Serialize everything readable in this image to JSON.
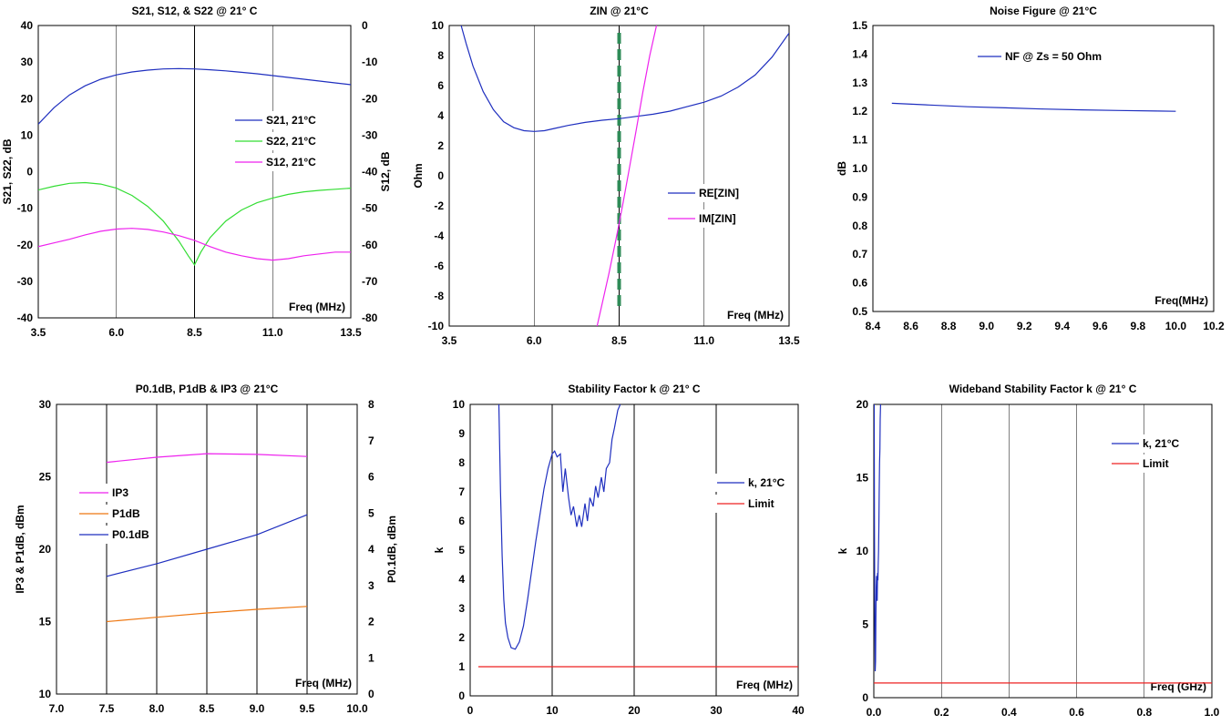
{
  "chart_data": [
    {
      "id": "s_params",
      "type": "line",
      "title": "S21, S12, & S22 @ 21° C",
      "xlabel": "",
      "xlabel_inside": "Freq (MHz)",
      "ylabel": "S21, S22, dB",
      "y2label": "S12, dB",
      "xlim": [
        3.5,
        13.5
      ],
      "xticks": [
        3.5,
        6.0,
        8.5,
        11.0,
        13.5
      ],
      "xtick_labels": [
        "3.5",
        "6.0",
        "8.5",
        "11.0",
        "13.5"
      ],
      "ylim": [
        -40,
        40
      ],
      "yticks": [
        -40,
        -30,
        -20,
        -10,
        0,
        10,
        20,
        30,
        40
      ],
      "ytick_labels": [
        "-40",
        "-30",
        "-20",
        "-10",
        "0",
        "10",
        "20",
        "30",
        "40"
      ],
      "y2lim": [
        -80,
        0
      ],
      "y2ticks": [
        -80,
        -70,
        -60,
        -50,
        -40,
        -30,
        -20,
        -10,
        0
      ],
      "y2tick_labels": [
        "-80",
        "-70",
        "-60",
        "-50",
        "-40",
        "-30",
        "-20",
        "-10",
        "0"
      ],
      "grid": "vertical",
      "legend": "right",
      "series": [
        {
          "name": "S21, 21°C",
          "color": "#1f2fbf",
          "axis": "left",
          "x": [
            3.5,
            4.0,
            4.5,
            5.0,
            5.5,
            6.0,
            6.5,
            7.0,
            7.5,
            8.0,
            8.5,
            9.0,
            9.5,
            10.0,
            10.5,
            11.0,
            11.5,
            12.0,
            12.5,
            13.0,
            13.5
          ],
          "y": [
            13,
            17.5,
            21,
            23.5,
            25.3,
            26.5,
            27.3,
            27.8,
            28.1,
            28.2,
            28.1,
            27.9,
            27.6,
            27.2,
            26.8,
            26.3,
            25.8,
            25.3,
            24.8,
            24.3,
            23.8
          ]
        },
        {
          "name": "S22, 21°C",
          "color": "#33dd33",
          "axis": "left",
          "x": [
            3.5,
            4.0,
            4.5,
            5.0,
            5.5,
            6.0,
            6.5,
            7.0,
            7.5,
            8.0,
            8.3,
            8.5,
            8.7,
            9.0,
            9.5,
            10.0,
            10.5,
            11.0,
            11.5,
            12.0,
            12.5,
            13.0,
            13.5
          ],
          "y": [
            -5,
            -4,
            -3.2,
            -3,
            -3.4,
            -4.5,
            -6.5,
            -9.5,
            -13.5,
            -19,
            -23,
            -25.5,
            -22,
            -18,
            -13.5,
            -10.5,
            -8.5,
            -7.2,
            -6.2,
            -5.5,
            -5.1,
            -4.8,
            -4.5
          ]
        },
        {
          "name": "S12, 21°C",
          "color": "#ee22ee",
          "axis": "right",
          "x": [
            3.5,
            4.0,
            4.5,
            5.0,
            5.5,
            6.0,
            6.5,
            7.0,
            7.5,
            8.0,
            8.5,
            9.0,
            9.5,
            10.0,
            10.5,
            11.0,
            11.5,
            12.0,
            12.5,
            13.0,
            13.5
          ],
          "y": [
            -60.5,
            -59.5,
            -58.5,
            -57.3,
            -56.3,
            -55.7,
            -55.5,
            -55.8,
            -56.5,
            -57.5,
            -58.8,
            -60.5,
            -62,
            -63,
            -63.8,
            -64.2,
            -63.8,
            -63,
            -62.5,
            -62,
            -62
          ]
        }
      ]
    },
    {
      "id": "zin",
      "type": "line",
      "title": "ZIN @ 21°C",
      "xlabel": "",
      "xlabel_inside": "Freq (MHz)",
      "ylabel": "Ohm",
      "xlim": [
        3.5,
        13.5
      ],
      "xticks": [
        3.5,
        6.0,
        8.5,
        11.0,
        13.5
      ],
      "xtick_labels": [
        "3.5",
        "6.0",
        "8.5",
        "11.0",
        "13.5"
      ],
      "ylim": [
        -10,
        10
      ],
      "yticks": [
        -10,
        -8,
        -6,
        -4,
        -2,
        0,
        2,
        4,
        6,
        8,
        10
      ],
      "ytick_labels": [
        "-10",
        "-8",
        "-6",
        "-4",
        "-2",
        "0",
        "2",
        "4",
        "6",
        "8",
        "10"
      ],
      "grid": "vertical",
      "legend": "right",
      "marker_x": 8.5,
      "marker_color": "#2e8b57",
      "series": [
        {
          "name": "RE[ZIN]",
          "color": "#1f2fbf",
          "x": [
            3.85,
            4.0,
            4.2,
            4.5,
            4.8,
            5.1,
            5.4,
            5.7,
            6.0,
            6.3,
            6.6,
            7.0,
            7.5,
            8.0,
            8.5,
            9.0,
            9.5,
            10.0,
            10.5,
            11.0,
            11.5,
            12.0,
            12.5,
            13.0,
            13.5
          ],
          "y": [
            10,
            8.8,
            7.3,
            5.6,
            4.4,
            3.6,
            3.2,
            3.0,
            2.95,
            3.0,
            3.15,
            3.35,
            3.55,
            3.7,
            3.8,
            3.95,
            4.1,
            4.3,
            4.6,
            4.9,
            5.3,
            5.9,
            6.7,
            7.9,
            9.5
          ]
        },
        {
          "name": "IM[ZIN]",
          "color": "#ee22ee",
          "x": [
            7.85,
            8.0,
            8.2,
            8.4,
            8.6,
            8.8,
            9.0,
            9.2,
            9.4,
            9.6
          ],
          "y": [
            -10,
            -8.5,
            -6.5,
            -4.3,
            -2.0,
            0.5,
            3.0,
            5.6,
            8.0,
            10
          ]
        }
      ]
    },
    {
      "id": "nf",
      "type": "line",
      "title": "Noise Figure @ 21°C",
      "xlabel": "",
      "xlabel_inside": "Freq(MHz)",
      "ylabel": "dB",
      "xlim": [
        8.4,
        10.2
      ],
      "xticks": [
        8.4,
        8.6,
        8.8,
        9.0,
        9.2,
        9.4,
        9.6,
        9.8,
        10.0,
        10.2
      ],
      "xtick_labels": [
        "8.4",
        "8.6",
        "8.8",
        "9.0",
        "9.2",
        "9.4",
        "9.6",
        "9.8",
        "10.0",
        "10.2"
      ],
      "ylim": [
        0.5,
        1.5
      ],
      "yticks": [
        0.5,
        0.6,
        0.7,
        0.8,
        0.9,
        1.0,
        1.1,
        1.2,
        1.3,
        1.4,
        1.5
      ],
      "ytick_labels": [
        "0.5",
        "0.6",
        "0.7",
        "0.8",
        "0.9",
        "1.0",
        "1.1",
        "1.2",
        "1.3",
        "1.4",
        "1.5"
      ],
      "grid": "none",
      "legend": "top",
      "series": [
        {
          "name": "NF @ Zs = 50 Ohm",
          "color": "#1f2fbf",
          "x": [
            8.5,
            8.7,
            8.9,
            9.1,
            9.3,
            9.5,
            9.7,
            9.9,
            10.0
          ],
          "y": [
            1.228,
            1.222,
            1.216,
            1.212,
            1.208,
            1.205,
            1.203,
            1.201,
            1.2
          ]
        }
      ]
    },
    {
      "id": "power",
      "type": "line",
      "title": "P0.1dB, P1dB & IP3 @ 21°C",
      "xlabel": "",
      "xlabel_inside": "Freq (MHz)",
      "ylabel": "IP3 & P1dB, dBm",
      "y2label": "P0.1dB, dBm",
      "xlim": [
        7.0,
        10.0
      ],
      "xticks": [
        7.0,
        7.5,
        8.0,
        8.5,
        9.0,
        9.5,
        10.0
      ],
      "xtick_labels": [
        "7.0",
        "7.5",
        "8.0",
        "8.5",
        "9.0",
        "9.5",
        "10.0"
      ],
      "ylim": [
        10,
        30
      ],
      "yticks": [
        10,
        15,
        20,
        25,
        30
      ],
      "ytick_labels": [
        "10",
        "15",
        "20",
        "25",
        "30"
      ],
      "y2lim": [
        0,
        8
      ],
      "y2ticks": [
        0,
        1,
        2,
        3,
        4,
        5,
        6,
        7,
        8
      ],
      "y2tick_labels": [
        "0",
        "1",
        "2",
        "3",
        "4",
        "5",
        "6",
        "7",
        "8"
      ],
      "grid": "vertical",
      "legend": "left",
      "series": [
        {
          "name": "IP3",
          "color": "#ee22ee",
          "axis": "left",
          "x": [
            7.5,
            8.0,
            8.5,
            9.0,
            9.5
          ],
          "y": [
            26.0,
            26.35,
            26.6,
            26.55,
            26.4
          ]
        },
        {
          "name": "P1dB",
          "color": "#ee7711",
          "axis": "left",
          "x": [
            7.5,
            8.0,
            8.5,
            9.0,
            9.5
          ],
          "y": [
            15.0,
            15.3,
            15.6,
            15.85,
            16.05
          ]
        },
        {
          "name": "P0.1dB",
          "color": "#1f2fbf",
          "axis": "right",
          "x": [
            7.5,
            8.0,
            8.5,
            9.0,
            9.5
          ],
          "y": [
            3.25,
            3.6,
            4.0,
            4.4,
            4.95
          ]
        }
      ]
    },
    {
      "id": "k_narrow",
      "type": "line",
      "title": "Stability Factor k @ 21° C",
      "xlabel": "",
      "xlabel_inside": "Freq (MHz)",
      "ylabel": "k",
      "xlim": [
        0,
        40
      ],
      "xticks": [
        0,
        10,
        20,
        30,
        40
      ],
      "xtick_labels": [
        "0",
        "10",
        "20",
        "30",
        "40"
      ],
      "ylim": [
        0,
        10
      ],
      "yticks": [
        0,
        1,
        2,
        3,
        4,
        5,
        6,
        7,
        8,
        9,
        10
      ],
      "ytick_labels": [
        "0",
        "1",
        "2",
        "3",
        "4",
        "5",
        "6",
        "7",
        "8",
        "9",
        "10"
      ],
      "grid": "vertical",
      "legend": "right",
      "series": [
        {
          "name": "k, 21°C",
          "color": "#1f2fbf",
          "x": [
            3.5,
            3.7,
            3.9,
            4.1,
            4.3,
            4.6,
            5.0,
            5.5,
            6.0,
            6.5,
            7.0,
            7.5,
            8.0,
            8.5,
            9.0,
            9.5,
            10.0,
            10.3,
            10.6,
            11.0,
            11.3,
            11.6,
            12.0,
            12.3,
            12.6,
            13.0,
            13.3,
            13.6,
            14.0,
            14.3,
            14.6,
            15.0,
            15.3,
            15.6,
            16.0,
            16.3,
            16.6,
            17.0,
            17.3,
            17.6,
            18.0,
            18.3
          ],
          "y": [
            10,
            7.0,
            4.8,
            3.3,
            2.5,
            2.0,
            1.65,
            1.6,
            1.85,
            2.4,
            3.3,
            4.3,
            5.3,
            6.2,
            7.1,
            7.8,
            8.3,
            8.4,
            8.2,
            8.3,
            7.0,
            7.8,
            6.8,
            6.2,
            6.5,
            5.8,
            6.2,
            5.8,
            6.6,
            6.0,
            6.8,
            6.5,
            7.2,
            6.8,
            7.5,
            7.0,
            7.8,
            8.0,
            8.8,
            9.2,
            9.8,
            10
          ]
        },
        {
          "name": "Limit",
          "color": "#ee2222",
          "x": [
            1,
            40
          ],
          "y": [
            1,
            1
          ]
        }
      ]
    },
    {
      "id": "k_wide",
      "type": "line",
      "title": "Wideband Stability Factor k @ 21° C",
      "xlabel": "",
      "xlabel_inside": "Freq (GHz)",
      "ylabel": "k",
      "xlim": [
        0,
        1.0
      ],
      "xticks": [
        0.0,
        0.2,
        0.4,
        0.6,
        0.8,
        1.0
      ],
      "xtick_labels": [
        "0.0",
        "0.2",
        "0.4",
        "0.6",
        "0.8",
        "1.0"
      ],
      "ylim": [
        0,
        20
      ],
      "yticks": [
        0,
        5,
        10,
        15,
        20
      ],
      "ytick_labels": [
        "0",
        "5",
        "10",
        "15",
        "20"
      ],
      "grid": "vertical",
      "legend": "right",
      "series": [
        {
          "name": "k, 21°C",
          "color": "#1f2fbf",
          "x": [
            0.001,
            0.002,
            0.003,
            0.004,
            0.005,
            0.006,
            0.007,
            0.008,
            0.009,
            0.01,
            0.011,
            0.012,
            0.013,
            0.014,
            0.015,
            0.016,
            0.017,
            0.018,
            0.019,
            0.02
          ],
          "y": [
            20,
            12,
            5,
            1.8,
            2.5,
            5.0,
            7.5,
            8.3,
            7.0,
            6.6,
            8.5,
            8.0,
            9.0,
            10,
            12,
            14,
            16,
            17,
            19,
            20
          ]
        },
        {
          "name": "Limit",
          "color": "#ee2222",
          "x": [
            0,
            1.0
          ],
          "y": [
            1,
            1
          ]
        }
      ]
    }
  ]
}
